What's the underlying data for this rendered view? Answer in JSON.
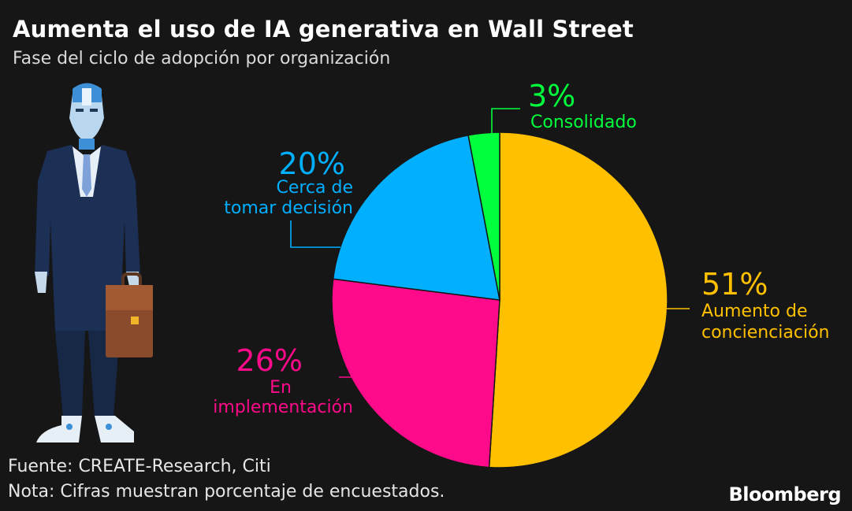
{
  "header": {
    "title": "Aumenta el uso de IA generativa en Wall Street",
    "subtitle": "Fase del ciclo de adopción por organización"
  },
  "footer": {
    "source": "Fuente: CREATE-Research, Citi",
    "note": "Nota: Cifras muestran porcentaje de encuestados.",
    "brand": "Bloomberg"
  },
  "chart_data": {
    "type": "pie",
    "title": "Aumenta el uso de IA generativa en Wall Street",
    "subtitle": "Fase del ciclo de adopción por organización",
    "unit": "%",
    "slices": [
      {
        "pct_label": "51%",
        "label_lines": [
          "Aumento de",
          "concienciación"
        ],
        "value": 51,
        "color": "#ffc000"
      },
      {
        "pct_label": "26%",
        "label_lines": [
          "En",
          "implementación"
        ],
        "value": 26,
        "color": "#ff0a8a"
      },
      {
        "pct_label": "20%",
        "label_lines": [
          "Cerca de",
          "tomar decisión"
        ],
        "value": 20,
        "color": "#00b0ff"
      },
      {
        "pct_label": "3%",
        "label_lines": [
          "Consolidado"
        ],
        "value": 3,
        "color": "#00ff3c"
      }
    ]
  }
}
